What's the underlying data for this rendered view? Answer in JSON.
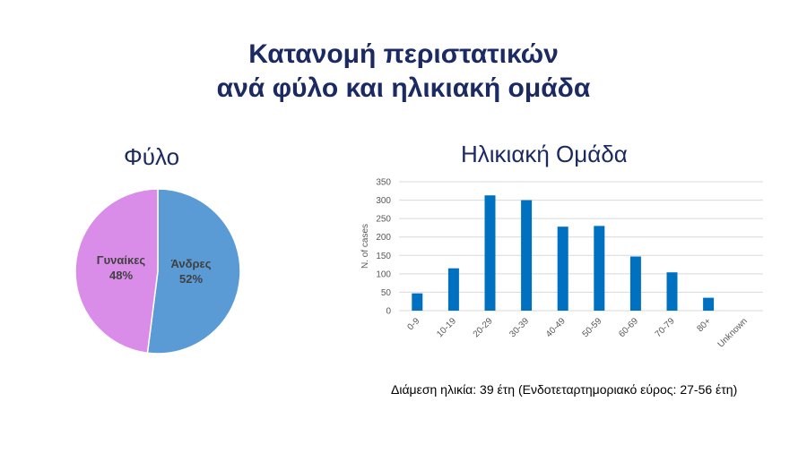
{
  "title": {
    "line1": "Κατανομή περιστατικών",
    "line2": "ανά φύλο και ηλικιακή ομάδα"
  },
  "footnote": "Διάμεση ηλικία: 39 έτη (Ενδοτεταρτημοριακό εύρος: 27-56 έτη)",
  "colors": {
    "title": "#1b2a63",
    "male": "#5b9bd5",
    "female": "#da8de8",
    "bar": "#0070c0"
  },
  "chart_data": [
    {
      "type": "pie",
      "title": "Φύλο",
      "slices": [
        {
          "label": "Άνδρες",
          "value": 52,
          "display": "52%",
          "color": "#5b9bd5"
        },
        {
          "label": "Γυναίκες",
          "value": 48,
          "display": "48%",
          "color": "#da8de8"
        }
      ]
    },
    {
      "type": "bar",
      "title": "Ηλικιακή Ομάδα",
      "categories": [
        "0-9",
        "10-19",
        "20-29",
        "30-39",
        "40-49",
        "50-59",
        "60-69",
        "70-79",
        "80+",
        "Unknown"
      ],
      "values": [
        47,
        115,
        313,
        300,
        228,
        230,
        147,
        104,
        35,
        0
      ],
      "ylabel": "N. of cases",
      "xlabel": "",
      "ylim": [
        0,
        350
      ],
      "yticks": [
        0,
        50,
        100,
        150,
        200,
        250,
        300,
        350
      ],
      "grid": true
    }
  ]
}
